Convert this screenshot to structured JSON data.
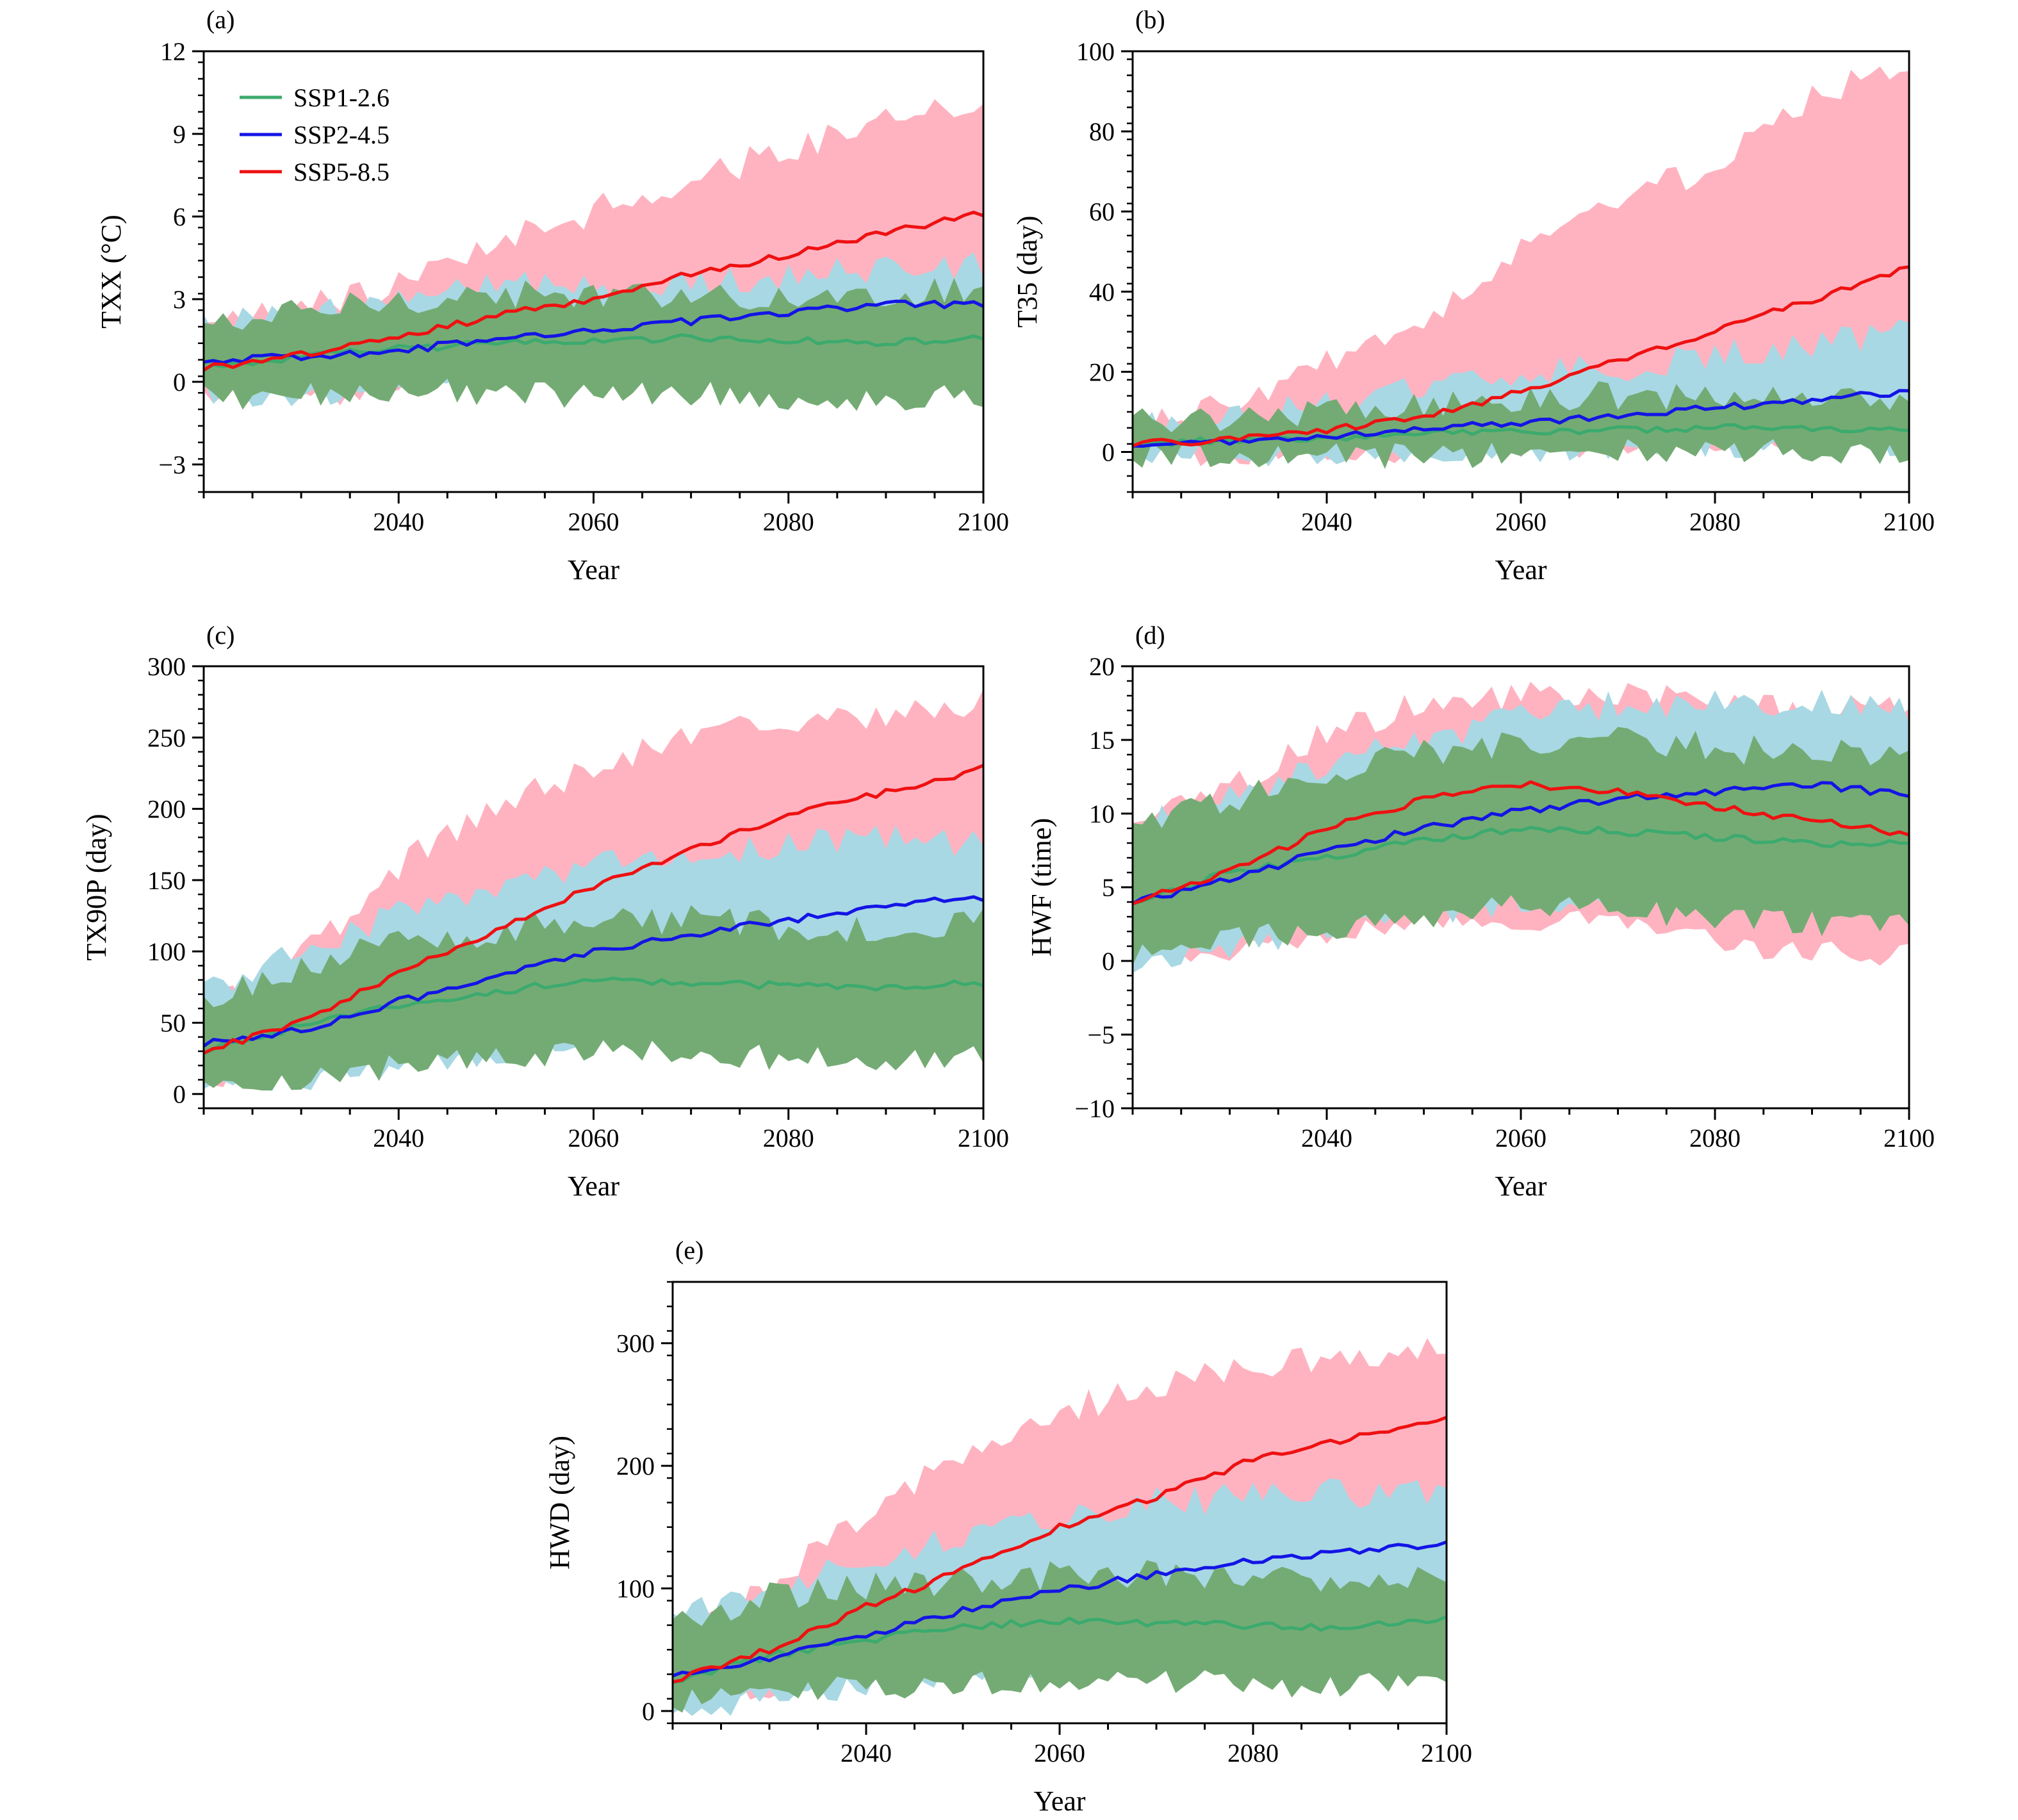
{
  "chart_data": [
    {
      "panel_label": "(a)",
      "type": "line",
      "xlabel": "Year",
      "ylabel": "TXX (°C)",
      "xlim": [
        2020,
        2100
      ],
      "ylim": [
        -4,
        12
      ],
      "xticks": [
        2040,
        2060,
        2080,
        2100
      ],
      "yticks": [
        -3,
        0,
        3,
        6,
        9,
        12
      ],
      "ytick_labels": [
        "−3",
        "0",
        "3",
        "6",
        "9",
        "12"
      ],
      "legend": {
        "position": "top-left",
        "entries": [
          "SSP1-2.6",
          "SSP2-4.5",
          "SSP5-8.5"
        ]
      },
      "series": [
        {
          "name": "SSP1-2.6",
          "color": "#3caa6e",
          "x": [
            2020,
            2030,
            2040,
            2050,
            2060,
            2070,
            2080,
            2090,
            2100
          ],
          "values": [
            0.5,
            0.9,
            1.2,
            1.4,
            1.5,
            1.6,
            1.5,
            1.4,
            1.6
          ],
          "band_low": [
            -0.6,
            -0.5,
            -0.3,
            -0.4,
            -0.5,
            -0.4,
            -0.6,
            -0.7,
            -0.5
          ],
          "band_high": [
            2.0,
            2.5,
            3.0,
            3.2,
            3.0,
            3.3,
            3.0,
            3.2,
            3.3
          ],
          "band_color": "#74ab74"
        },
        {
          "name": "SSP2-4.5",
          "color": "#1414e6",
          "x": [
            2020,
            2030,
            2040,
            2050,
            2060,
            2070,
            2080,
            2090,
            2100
          ],
          "values": [
            0.8,
            0.9,
            1.1,
            1.6,
            1.9,
            2.2,
            2.5,
            2.8,
            2.8
          ],
          "band_low": [
            -0.4,
            -0.6,
            -0.2,
            0.2,
            0.4,
            0.6,
            0.9,
            1.0,
            1.2
          ],
          "band_high": [
            2.3,
            2.4,
            3.0,
            3.5,
            3.4,
            3.6,
            3.9,
            4.0,
            4.2
          ],
          "band_color": "#a8d8e4"
        },
        {
          "name": "SSP5-8.5",
          "color": "#ee1111",
          "x": [
            2020,
            2030,
            2040,
            2050,
            2060,
            2070,
            2080,
            2090,
            2100
          ],
          "values": [
            0.5,
            1.0,
            1.6,
            2.4,
            3.0,
            3.9,
            4.6,
            5.4,
            6.1
          ],
          "band_low": [
            -0.8,
            -0.6,
            -0.1,
            0.3,
            0.8,
            1.3,
            1.9,
            2.4,
            3.0
          ],
          "band_high": [
            2.0,
            2.6,
            3.6,
            5.0,
            6.2,
            7.4,
            8.4,
            9.5,
            10.0
          ],
          "band_color": "#ffb3c1"
        }
      ]
    },
    {
      "panel_label": "(b)",
      "type": "line",
      "xlabel": "Year",
      "ylabel": "T35 (day)",
      "xlim": [
        2020,
        2100
      ],
      "ylim": [
        -10,
        100
      ],
      "xticks": [
        2040,
        2060,
        2080,
        2100
      ],
      "yticks": [
        0,
        20,
        40,
        60,
        80,
        100
      ],
      "ytick_labels": [
        "0",
        "20",
        "40",
        "60",
        "80",
        "100"
      ],
      "series": [
        {
          "name": "SSP1-2.6",
          "color": "#3caa6e",
          "x": [
            2020,
            2030,
            2040,
            2050,
            2060,
            2070,
            2080,
            2090,
            2100
          ],
          "values": [
            2,
            3,
            3.5,
            4.5,
            5,
            5.5,
            6,
            6,
            5
          ],
          "band_low": [
            -1,
            -1,
            -1,
            -1,
            -0.5,
            0,
            0,
            0,
            0
          ],
          "band_high": [
            8,
            9,
            10,
            12,
            13,
            14,
            13,
            14,
            14
          ],
          "band_color": "#74ab74"
        },
        {
          "name": "SSP2-4.5",
          "color": "#1414e6",
          "x": [
            2020,
            2030,
            2040,
            2050,
            2060,
            2070,
            2080,
            2090,
            2100
          ],
          "values": [
            2,
            2.5,
            4,
            5.5,
            7.5,
            9,
            11,
            13,
            15
          ],
          "band_low": [
            -1,
            -1,
            -0.5,
            0,
            0.5,
            1,
            1.5,
            2,
            2
          ],
          "band_high": [
            7,
            9,
            12,
            16,
            19,
            21,
            24,
            27,
            30
          ],
          "band_color": "#a8d8e4"
        },
        {
          "name": "SSP5-8.5",
          "color": "#ee1111",
          "x": [
            2020,
            2030,
            2040,
            2050,
            2060,
            2070,
            2080,
            2090,
            2100
          ],
          "values": [
            2,
            3,
            5.5,
            9,
            15,
            23,
            30,
            38,
            46
          ],
          "band_low": [
            -1,
            -1,
            0,
            0.5,
            1,
            2,
            3,
            4,
            5
          ],
          "band_high": [
            7,
            12,
            22,
            32,
            50,
            62,
            72,
            88,
            97
          ],
          "band_color": "#ffb3c1"
        }
      ]
    },
    {
      "panel_label": "(c)",
      "type": "line",
      "xlabel": "Year",
      "ylabel": "TX90P (day)",
      "xlim": [
        2020,
        2100
      ],
      "ylim": [
        -10,
        300
      ],
      "xticks": [
        2040,
        2060,
        2080,
        2100
      ],
      "yticks": [
        0,
        50,
        100,
        150,
        200,
        250,
        300
      ],
      "ytick_labels": [
        "0",
        "50",
        "100",
        "150",
        "200",
        "250",
        "300"
      ],
      "series": [
        {
          "name": "SSP1-2.6",
          "color": "#3caa6e",
          "x": [
            2020,
            2030,
            2040,
            2050,
            2060,
            2070,
            2080,
            2090,
            2100
          ],
          "values": [
            30,
            48,
            62,
            72,
            80,
            78,
            76,
            74,
            78
          ],
          "band_low": [
            5,
            12,
            20,
            25,
            30,
            28,
            25,
            22,
            25
          ],
          "band_high": [
            65,
            90,
            105,
            115,
            120,
            122,
            118,
            115,
            120
          ],
          "band_color": "#74ab74"
        },
        {
          "name": "SSP2-4.5",
          "color": "#1414e6",
          "x": [
            2020,
            2030,
            2040,
            2050,
            2060,
            2070,
            2080,
            2090,
            2100
          ],
          "values": [
            35,
            45,
            65,
            82,
            100,
            112,
            122,
            132,
            138
          ],
          "band_low": [
            0,
            10,
            20,
            30,
            40,
            50,
            58,
            65,
            70
          ],
          "band_high": [
            75,
            100,
            125,
            145,
            160,
            170,
            175,
            180,
            175
          ],
          "band_color": "#a8d8e4"
        },
        {
          "name": "SSP5-8.5",
          "color": "#ee1111",
          "x": [
            2020,
            2030,
            2040,
            2050,
            2060,
            2070,
            2080,
            2090,
            2100
          ],
          "values": [
            30,
            50,
            85,
            115,
            145,
            172,
            195,
            212,
            228
          ],
          "band_low": [
            10,
            20,
            40,
            60,
            80,
            100,
            115,
            125,
            135
          ],
          "band_high": [
            60,
            95,
            160,
            200,
            230,
            250,
            260,
            268,
            275
          ],
          "band_color": "#ffb3c1"
        }
      ]
    },
    {
      "panel_label": "(d)",
      "type": "line",
      "xlabel": "Year",
      "ylabel": "HWF (time)",
      "xlim": [
        2020,
        2100
      ],
      "ylim": [
        -10,
        20
      ],
      "xticks": [
        2040,
        2060,
        2080,
        2100
      ],
      "yticks": [
        -10,
        -5,
        0,
        5,
        10,
        15,
        20
      ],
      "ytick_labels": [
        "−10",
        "−5",
        "0",
        "5",
        "10",
        "15",
        "20"
      ],
      "series": [
        {
          "name": "SSP1-2.6",
          "color": "#3caa6e",
          "x": [
            2020,
            2030,
            2040,
            2050,
            2060,
            2070,
            2080,
            2090,
            2100
          ],
          "values": [
            4,
            6,
            7,
            8.2,
            9,
            8.8,
            8.4,
            8,
            8
          ],
          "band_low": [
            0.5,
            1.5,
            2,
            3,
            4,
            3.5,
            3,
            2.5,
            2.5
          ],
          "band_high": [
            9,
            11,
            13,
            14,
            15,
            15,
            14.5,
            14,
            14
          ],
          "band_color": "#74ab74"
        },
        {
          "name": "SSP2-4.5",
          "color": "#1414e6",
          "x": [
            2020,
            2030,
            2040,
            2050,
            2060,
            2070,
            2080,
            2090,
            2100
          ],
          "values": [
            4,
            5.5,
            7.5,
            9,
            10.2,
            11,
            11.5,
            12,
            11.2
          ],
          "band_low": [
            0,
            1,
            2,
            3,
            4,
            4.5,
            5,
            5,
            5
          ],
          "band_high": [
            9,
            11,
            13.5,
            15,
            16.5,
            17.5,
            17.5,
            17.5,
            17
          ],
          "band_color": "#a8d8e4"
        },
        {
          "name": "SSP5-8.5",
          "color": "#ee1111",
          "x": [
            2020,
            2030,
            2040,
            2050,
            2060,
            2070,
            2080,
            2090,
            2100
          ],
          "values": [
            4,
            6,
            9,
            11,
            12,
            11.5,
            10.5,
            9.5,
            8.6
          ],
          "band_low": [
            0,
            0.5,
            2,
            3,
            3,
            2.5,
            1.5,
            0.5,
            0.5
          ],
          "band_high": [
            9,
            12,
            15.5,
            17.5,
            18,
            18,
            17.5,
            17,
            17
          ],
          "band_color": "#ffb3c1"
        }
      ]
    },
    {
      "panel_label": "(e)",
      "type": "line",
      "xlabel": "Year",
      "ylabel": "HWD (day)",
      "xlim": [
        2020,
        2100
      ],
      "ylim": [
        -10,
        350
      ],
      "xticks": [
        2040,
        2060,
        2080,
        2100
      ],
      "yticks": [
        0,
        100,
        200,
        300
      ],
      "ytick_labels": [
        "0",
        "100",
        "200",
        "300"
      ],
      "series": [
        {
          "name": "SSP1-2.6",
          "color": "#3caa6e",
          "x": [
            2020,
            2030,
            2040,
            2050,
            2060,
            2070,
            2080,
            2090,
            2100
          ],
          "values": [
            25,
            45,
            58,
            68,
            74,
            72,
            70,
            68,
            75
          ],
          "band_low": [
            5,
            15,
            20,
            22,
            25,
            25,
            22,
            20,
            22
          ],
          "band_high": [
            70,
            95,
            100,
            105,
            110,
            112,
            110,
            108,
            110
          ],
          "band_color": "#74ab74"
        },
        {
          "name": "SSP2-4.5",
          "color": "#1414e6",
          "x": [
            2020,
            2030,
            2040,
            2050,
            2060,
            2070,
            2080,
            2090,
            2100
          ],
          "values": [
            30,
            42,
            62,
            82,
            98,
            112,
            122,
            130,
            136
          ],
          "band_low": [
            0,
            10,
            20,
            30,
            40,
            50,
            58,
            65,
            70
          ],
          "band_high": [
            75,
            100,
            125,
            145,
            160,
            170,
            175,
            178,
            175
          ],
          "band_color": "#a8d8e4"
        },
        {
          "name": "SSP5-8.5",
          "color": "#ee1111",
          "x": [
            2020,
            2030,
            2040,
            2050,
            2060,
            2070,
            2080,
            2090,
            2100
          ],
          "values": [
            25,
            50,
            85,
            115,
            150,
            175,
            205,
            222,
            238
          ],
          "band_low": [
            10,
            20,
            40,
            60,
            80,
            100,
            115,
            125,
            135
          ],
          "band_high": [
            60,
            100,
            160,
            210,
            245,
            265,
            280,
            290,
            298
          ],
          "band_color": "#ffb3c1"
        }
      ]
    }
  ]
}
